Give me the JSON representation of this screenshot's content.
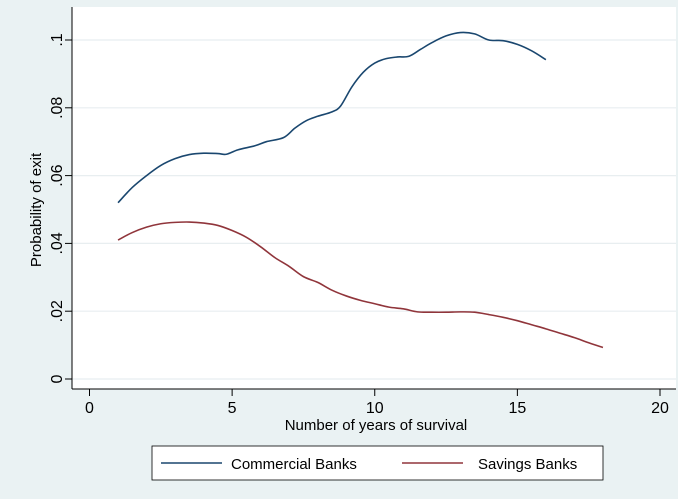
{
  "chart_data": {
    "type": "line",
    "xlabel": "Number of years of survival",
    "ylabel": "Probability of exit",
    "xlim": [
      0,
      20
    ],
    "ylim": [
      0,
      0.1
    ],
    "x_ticks": [
      0,
      5,
      10,
      15,
      20
    ],
    "y_ticks": [
      0,
      0.02,
      0.04,
      0.06,
      0.08,
      0.1
    ],
    "x_tick_labels": [
      "0",
      "5",
      "10",
      "15",
      "20"
    ],
    "y_tick_labels": [
      "0",
      ".02",
      ".04",
      ".06",
      ".08",
      ".1"
    ],
    "grid": "horizontal",
    "legend_position": "bottom",
    "series": [
      {
        "name": "Commercial Banks",
        "color": "#1a476f",
        "x": [
          1,
          1.5,
          2,
          2.5,
          3,
          3.5,
          4,
          4.5,
          4.8,
          5.2,
          5.8,
          6.2,
          6.8,
          7.2,
          7.6,
          8,
          8.5,
          8.8,
          9.2,
          9.6,
          10,
          10.4,
          10.8,
          11.2,
          11.6,
          12,
          12.5,
          13,
          13.5,
          14,
          14.5,
          15,
          15.5,
          16
        ],
        "y": [
          0.052,
          0.0565,
          0.06,
          0.063,
          0.065,
          0.0662,
          0.0666,
          0.0665,
          0.0663,
          0.0676,
          0.0688,
          0.07,
          0.0712,
          0.074,
          0.0762,
          0.0775,
          0.0788,
          0.0805,
          0.0862,
          0.0905,
          0.0932,
          0.0945,
          0.095,
          0.0952,
          0.0972,
          0.0992,
          0.1012,
          0.1022,
          0.1018,
          0.1,
          0.0998,
          0.0987,
          0.0968,
          0.0942
        ]
      },
      {
        "name": "Savings Banks",
        "color": "#90353b",
        "x": [
          1,
          1.5,
          2,
          2.5,
          3,
          3.5,
          4,
          4.5,
          5,
          5.5,
          6,
          6.5,
          7,
          7.5,
          8,
          8.5,
          9,
          9.5,
          10,
          10.5,
          11,
          11.5,
          12,
          12.5,
          13,
          13.5,
          14,
          14.5,
          15,
          15.5,
          16,
          16.5,
          17,
          17.5,
          18
        ],
        "y": [
          0.041,
          0.0432,
          0.0448,
          0.0458,
          0.0462,
          0.0463,
          0.046,
          0.0453,
          0.0438,
          0.0418,
          0.039,
          0.0358,
          0.0332,
          0.0302,
          0.0285,
          0.0262,
          0.0245,
          0.0232,
          0.0222,
          0.0212,
          0.0207,
          0.0198,
          0.0197,
          0.0197,
          0.0198,
          0.0197,
          0.019,
          0.0182,
          0.0172,
          0.016,
          0.0148,
          0.0135,
          0.0122,
          0.0107,
          0.0093
        ]
      }
    ]
  }
}
